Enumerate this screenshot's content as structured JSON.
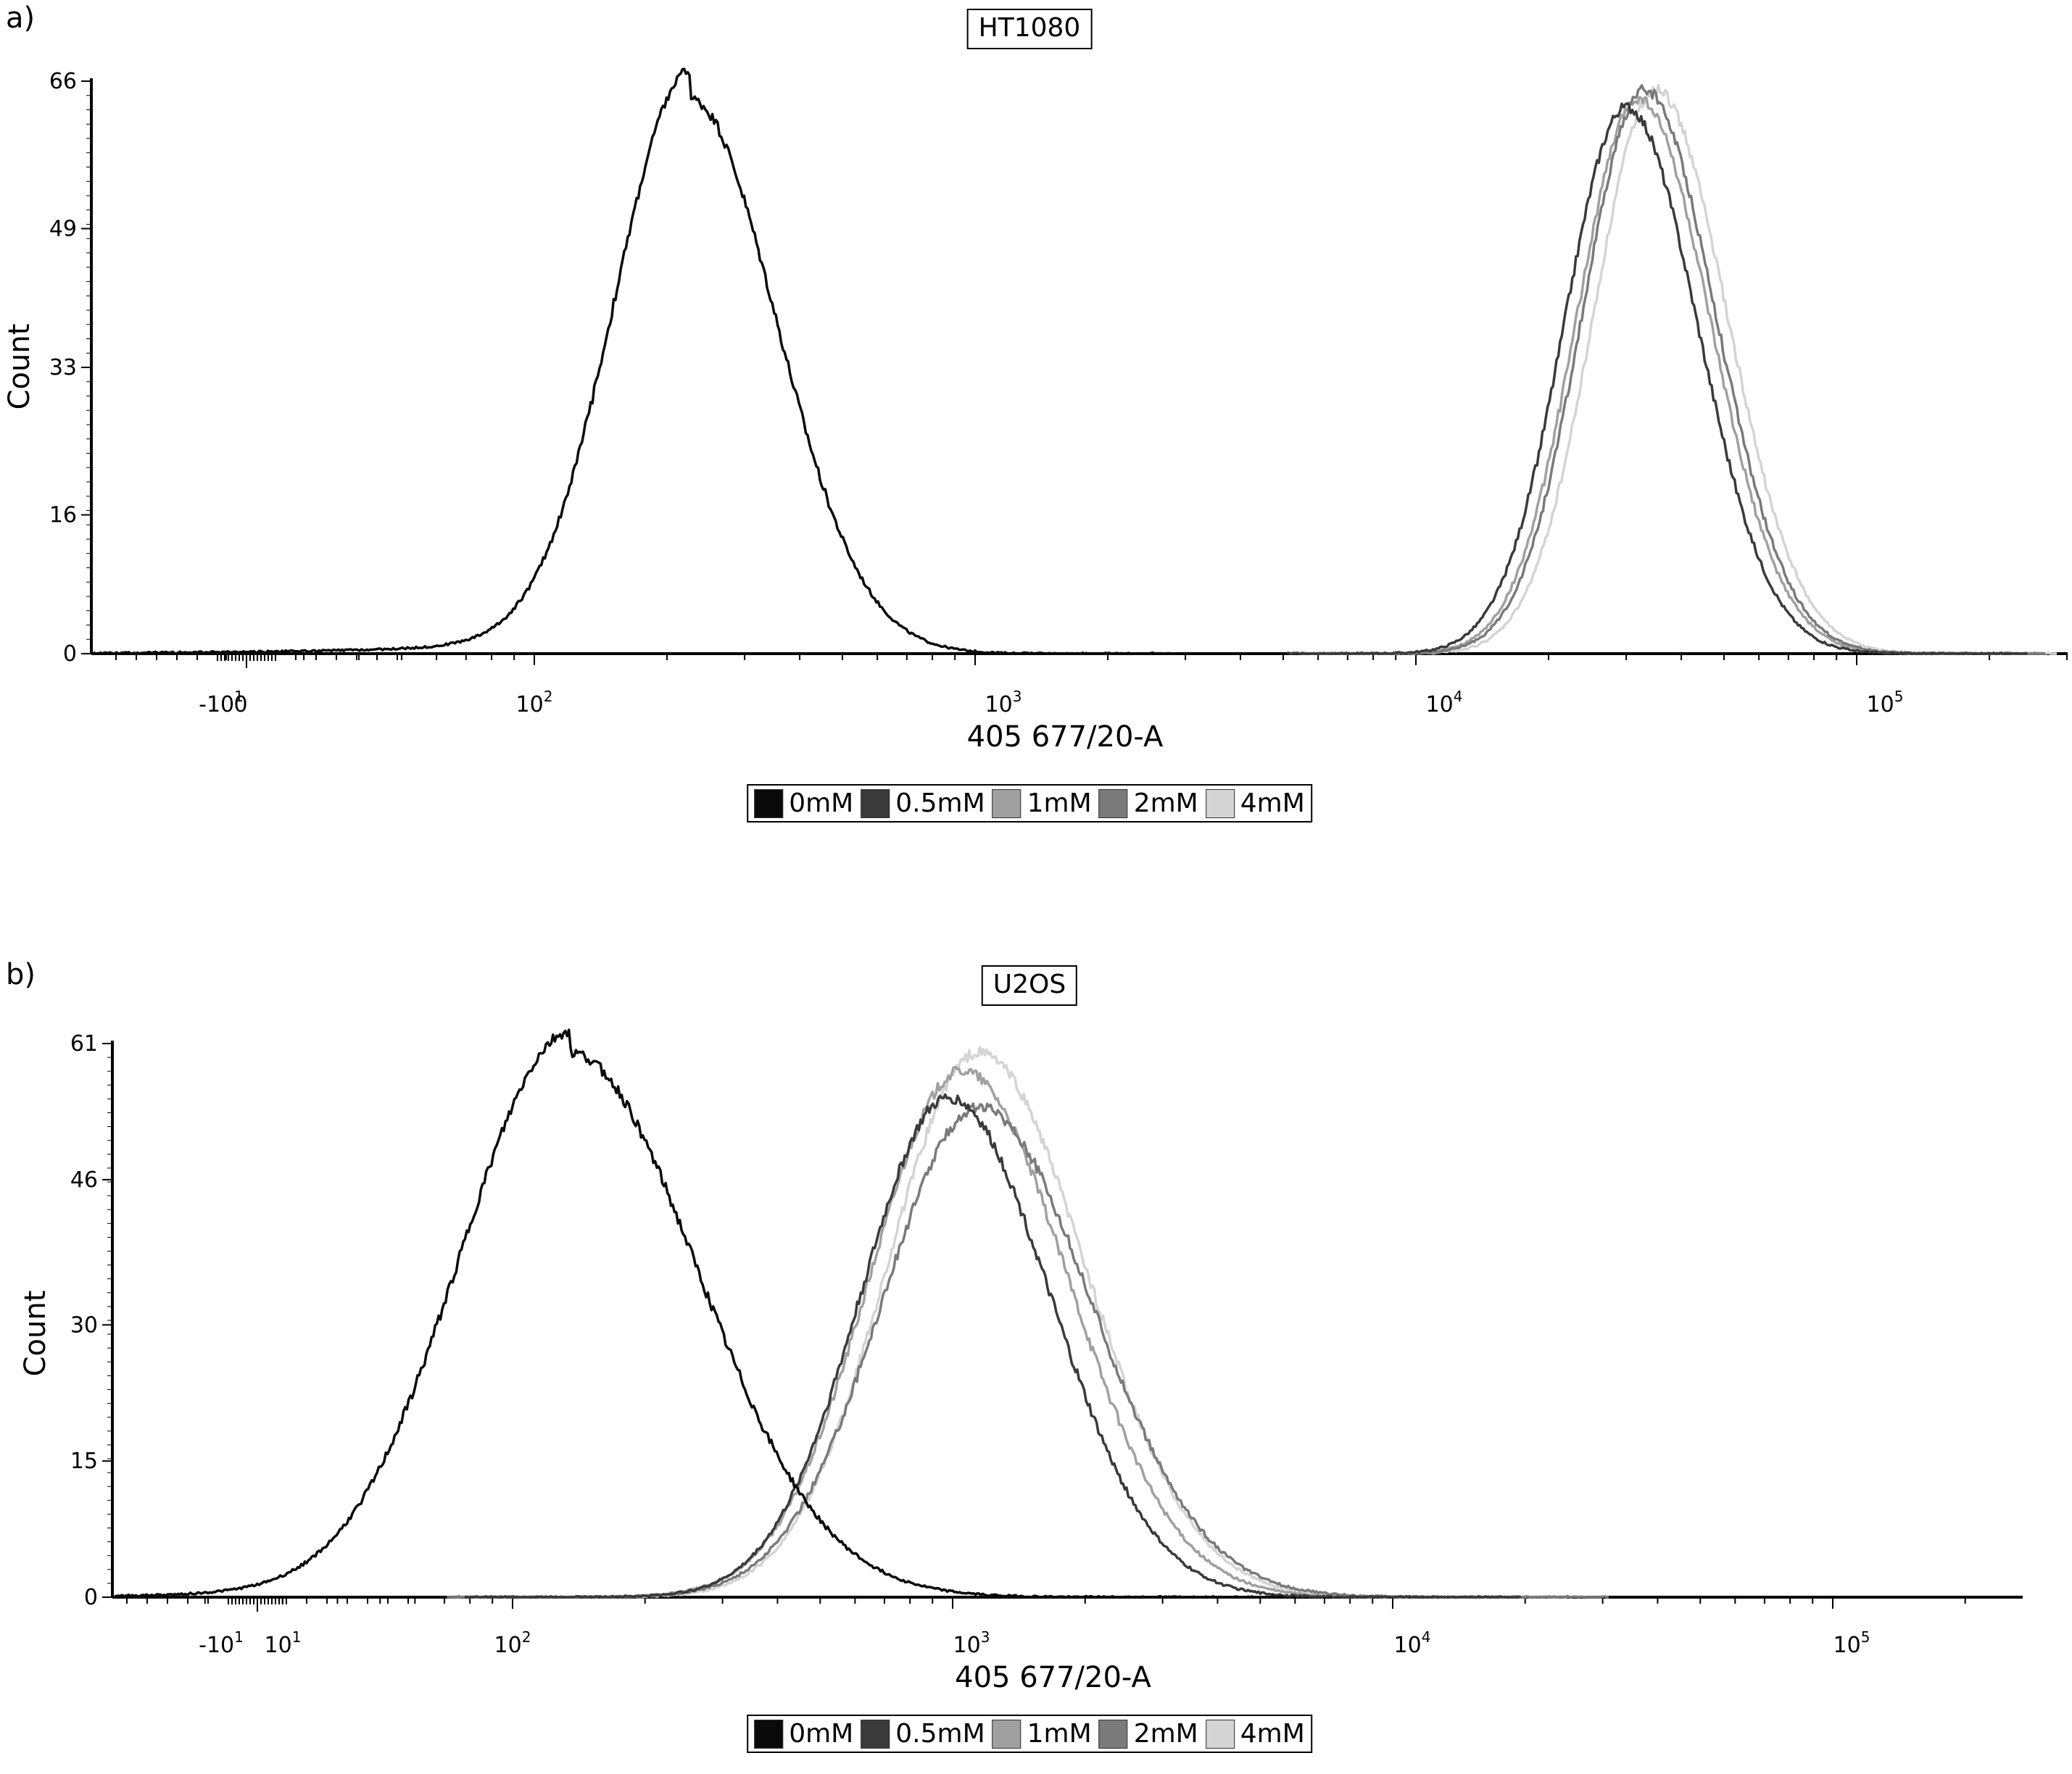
{
  "colors": {
    "0mM": "#0a0a0a",
    "0.5mM": "#3a3a3a",
    "1mM": "#a0a0a0",
    "2mM": "#7a7a7a",
    "4mM": "#d4d4d4"
  },
  "legend": [
    {
      "key": "0mM",
      "label": "0mM",
      "color": "#0a0a0a"
    },
    {
      "key": "0.5mM",
      "label": "0.5mM",
      "color": "#3a3a3a"
    },
    {
      "key": "1mM",
      "label": "1mM",
      "color": "#a0a0a0"
    },
    {
      "key": "2mM",
      "label": "2mM",
      "color": "#7a7a7a"
    },
    {
      "key": "4mM",
      "label": "4mM",
      "color": "#d4d4d4"
    }
  ],
  "panels": [
    {
      "label": "a)",
      "title": "HT1080"
    },
    {
      "label": "b)",
      "title": "U2OS"
    }
  ],
  "chart_data": [
    {
      "type": "line",
      "title": "HT1080",
      "xlabel": "405 677/20-A",
      "ylabel": "Count",
      "xscale": "biexponential",
      "xlim": [
        -50,
        250000
      ],
      "ylim": [
        0,
        66
      ],
      "yticks": [
        0,
        16,
        33,
        49,
        66
      ],
      "xtick_labels": [
        "-10^1",
        "0",
        "10^2",
        "10^3",
        "10^4",
        "10^5"
      ],
      "legend_position": "bottom-center",
      "grid": false,
      "series": [
        {
          "name": "0mM",
          "peak_x": 225,
          "peak_y": 64,
          "sigma_decades": 0.17,
          "low_tail": 0.05
        },
        {
          "name": "0.5mM",
          "peak_x": 30000,
          "peak_y": 63,
          "sigma_decades": 0.14,
          "low_tail": 0
        },
        {
          "name": "1mM",
          "peak_x": 32000,
          "peak_y": 64,
          "sigma_decades": 0.14,
          "low_tail": 0
        },
        {
          "name": "2mM",
          "peak_x": 33000,
          "peak_y": 65,
          "sigma_decades": 0.14,
          "low_tail": 0
        },
        {
          "name": "4mM",
          "peak_x": 35000,
          "peak_y": 65,
          "sigma_decades": 0.14,
          "low_tail": 0
        }
      ]
    },
    {
      "type": "line",
      "title": "U2OS",
      "xlabel": "405 677/20-A",
      "ylabel": "Count",
      "xscale": "biexponential",
      "xlim": [
        -50,
        250000
      ],
      "ylim": [
        0,
        61
      ],
      "yticks": [
        0,
        15,
        30,
        46,
        61
      ],
      "xtick_labels": [
        "-10^1",
        "10^1",
        "10^2",
        "10^3",
        "10^4",
        "10^5"
      ],
      "legend_position": "bottom-center",
      "grid": false,
      "series": [
        {
          "name": "0mM",
          "peak_x": 135,
          "peak_y": 60,
          "sigma_decades": 0.25,
          "low_tail": 0.04
        },
        {
          "name": "0.5mM",
          "peak_x": 980,
          "peak_y": 55,
          "sigma_decades": 0.2,
          "low_tail": 0
        },
        {
          "name": "1mM",
          "peak_x": 1050,
          "peak_y": 58,
          "sigma_decades": 0.21,
          "low_tail": 0
        },
        {
          "name": "2mM",
          "peak_x": 1150,
          "peak_y": 54,
          "sigma_decades": 0.22,
          "low_tail": 0
        },
        {
          "name": "4mM",
          "peak_x": 1150,
          "peak_y": 60,
          "sigma_decades": 0.21,
          "low_tail": 0
        }
      ]
    }
  ]
}
